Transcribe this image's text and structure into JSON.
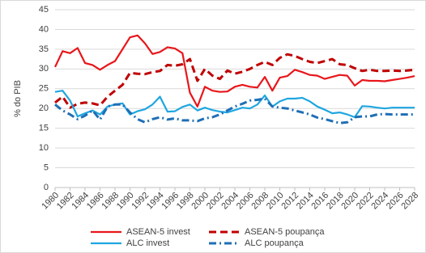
{
  "chart_data": {
    "type": "line",
    "y_label": "% do PIB",
    "x": [
      1980,
      1981,
      1982,
      1983,
      1984,
      1985,
      1986,
      1987,
      1988,
      1989,
      1990,
      1991,
      1992,
      1993,
      1994,
      1995,
      1996,
      1997,
      1998,
      1999,
      2000,
      2001,
      2002,
      2003,
      2004,
      2005,
      2006,
      2007,
      2008,
      2009,
      2010,
      2011,
      2012,
      2013,
      2014,
      2015,
      2016,
      2017,
      2018,
      2019,
      2020,
      2021,
      2022,
      2023,
      2024,
      2025,
      2026,
      2027,
      2028
    ],
    "xlim": [
      1980,
      2028
    ],
    "xticks": [
      1980,
      1982,
      1984,
      1986,
      1988,
      1990,
      1992,
      1994,
      1996,
      1998,
      2000,
      2002,
      2004,
      2006,
      2008,
      2010,
      2012,
      2014,
      2016,
      2018,
      2020,
      2022,
      2024,
      2026,
      2028
    ],
    "ylim": [
      0,
      45
    ],
    "yticks": [
      0,
      5,
      10,
      15,
      20,
      25,
      30,
      35,
      40,
      45
    ],
    "grid": true,
    "legend": "bottom",
    "series": [
      {
        "name": "ASEAN-5 invest",
        "color": "#e8161b",
        "style": "solid",
        "values": [
          30.5,
          34.5,
          34,
          35.3,
          31.5,
          31,
          29.8,
          31,
          32,
          35,
          38,
          38.5,
          36.5,
          33.8,
          34.3,
          35.5,
          35.2,
          34,
          24,
          20.5,
          25.5,
          24.5,
          24.2,
          24.3,
          25.5,
          26,
          25.5,
          25.3,
          28,
          24.5,
          27.8,
          28.2,
          29.8,
          29.2,
          28.5,
          28.3,
          27.5,
          28,
          28.5,
          28.3,
          25.8,
          27.2,
          27,
          27,
          26.9,
          27.2,
          27.5,
          27.8,
          28.2
        ]
      },
      {
        "name": "ASEAN-5 poupança",
        "color": "#c00000",
        "style": "dashed",
        "values": [
          21.5,
          23,
          20.2,
          21.2,
          21.5,
          21.3,
          20.8,
          23,
          24.5,
          26,
          29,
          28.8,
          28.7,
          29.2,
          29.5,
          31,
          30.8,
          31.2,
          32.5,
          27,
          30,
          28.3,
          27.5,
          29.6,
          28.8,
          29.3,
          30,
          31,
          31.8,
          31,
          32.8,
          33.7,
          33.3,
          32.5,
          31.8,
          31.5,
          32,
          32.5,
          31.2,
          31,
          30.2,
          29.5,
          29.8,
          29.5,
          29.5,
          29.6,
          29.5,
          29.6,
          29.8
        ]
      },
      {
        "name": "ALC invest",
        "color": "#1fa6e0",
        "style": "solid",
        "values": [
          24.2,
          24.5,
          22,
          18,
          18.8,
          19.5,
          18.5,
          20.5,
          21,
          21.3,
          18.5,
          19.3,
          19.8,
          21,
          23,
          19.2,
          19.3,
          20.4,
          21,
          19.5,
          20.2,
          19.6,
          19.2,
          19,
          19.6,
          20.2,
          20,
          21,
          23.3,
          20.5,
          21.8,
          22.5,
          22.5,
          22.7,
          21.8,
          20.5,
          19.7,
          18.8,
          19,
          18.5,
          17.8,
          20.6,
          20.5,
          20.2,
          20,
          20.2,
          20.2,
          20.2,
          20.2
        ]
      },
      {
        "name": "ALC poupança",
        "color": "#1f6fb5",
        "style": "dashdot",
        "values": [
          21,
          19.5,
          18.5,
          17.3,
          18.2,
          19.5,
          17.2,
          20.5,
          21,
          21,
          19,
          17.3,
          16.5,
          17.3,
          17.8,
          17.2,
          17.5,
          17,
          17,
          16.8,
          17.5,
          17.8,
          18.5,
          19.5,
          20.5,
          21.2,
          22,
          22.2,
          22.5,
          20.5,
          20.2,
          20,
          19.5,
          19,
          18.5,
          17.7,
          17.3,
          16.8,
          16.3,
          16.5,
          17.8,
          18,
          18,
          18.5,
          18.6,
          18.5,
          18.5,
          18.5,
          18.5
        ]
      }
    ]
  }
}
